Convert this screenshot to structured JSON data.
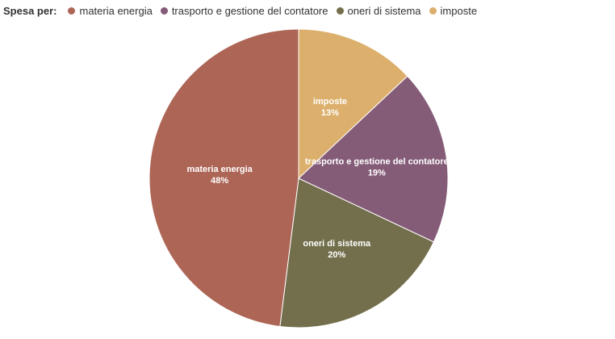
{
  "chart_data": {
    "type": "pie",
    "legend_title": "Spesa per:",
    "legend_position": "top-left",
    "slices": [
      {
        "label": "imposte",
        "value": 13,
        "display": "13%",
        "color": "#dcb06c"
      },
      {
        "label": "trasporto e gestione del contatore",
        "value": 19,
        "display": "19%",
        "color": "#855c78"
      },
      {
        "label": "oneri di sistema",
        "value": 20,
        "display": "20%",
        "color": "#736f4c"
      },
      {
        "label": "materia energia",
        "value": 48,
        "display": "48%",
        "color": "#ad6556"
      }
    ],
    "legend_order": [
      "materia energia",
      "trasporto e gestione del contatore",
      "oneri di sistema",
      "imposte"
    ]
  }
}
